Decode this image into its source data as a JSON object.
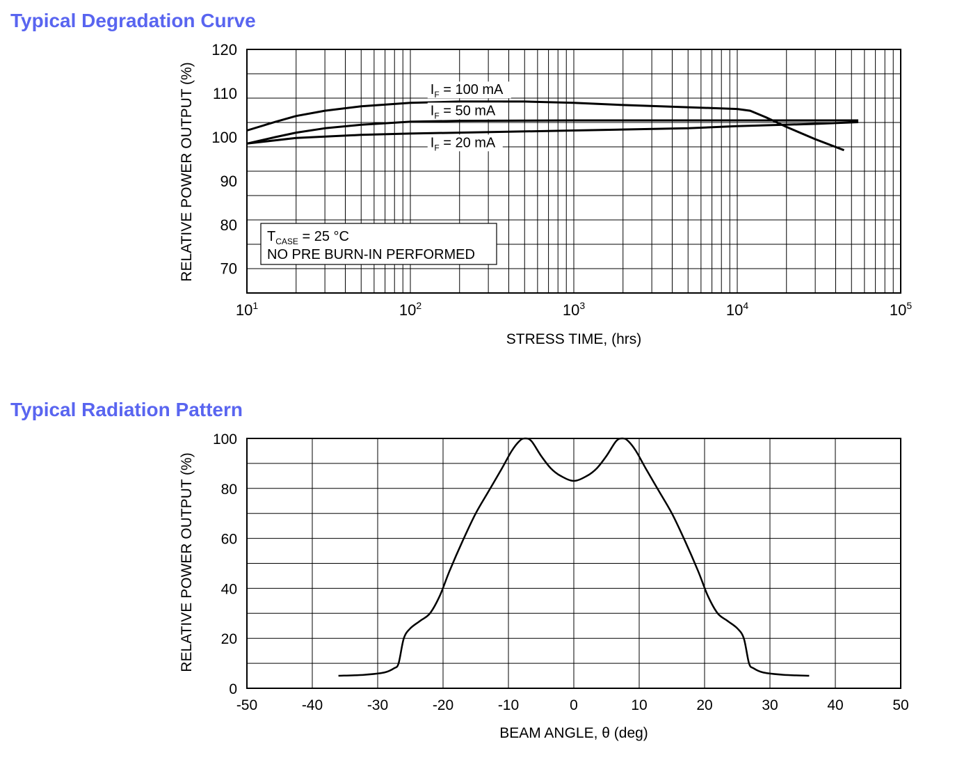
{
  "chart_data": [
    {
      "type": "line",
      "title": "Typical Degradation Curve",
      "xlabel": "STRESS TIME, (hrs)",
      "ylabel": "RELATIVE POWER OUTPUT (%)",
      "xscale": "log",
      "xlim": [
        10,
        100000
      ],
      "ylim": [
        64.4,
        120
      ],
      "xticks": [
        {
          "base": "10",
          "exp": "1",
          "value": 10
        },
        {
          "base": "10",
          "exp": "2",
          "value": 100
        },
        {
          "base": "10",
          "exp": "3",
          "value": 1000
        },
        {
          "base": "10",
          "exp": "4",
          "value": 10000
        },
        {
          "base": "10",
          "exp": "5",
          "value": 100000
        }
      ],
      "yticks": [
        120,
        110,
        100,
        90,
        80,
        70
      ],
      "grid": true,
      "series": [
        {
          "name": "IF = 100 mA",
          "label": {
            "main": "I",
            "sub": "F",
            "rest": " = 100 mA",
            "at": [
              130,
              109.8
            ]
          },
          "x": [
            10,
            15,
            20,
            30,
            50,
            100,
            200,
            500,
            1000,
            2000,
            5000,
            10000,
            12000,
            15000,
            20000,
            30000,
            45000
          ],
          "y": [
            101.5,
            103.5,
            104.8,
            106,
            107,
            107.8,
            108.1,
            108.1,
            107.8,
            107.3,
            106.8,
            106.4,
            106,
            104.5,
            102.3,
            99.5,
            97
          ]
        },
        {
          "name": "IF = 50 mA",
          "label": {
            "main": "I",
            "sub": "F",
            "rest": " = 50 mA",
            "at": [
              130,
              105
            ]
          },
          "x": [
            10,
            15,
            20,
            30,
            50,
            100,
            200,
            1000,
            10000,
            55000
          ],
          "y": [
            98.5,
            100,
            101,
            102,
            102.8,
            103.5,
            103.7,
            103.8,
            103.8,
            103.8
          ]
        },
        {
          "name": "IF = 20 mA",
          "label": {
            "main": "I",
            "sub": "F",
            "rest": " = 20 mA",
            "at": [
              130,
              97.7
            ]
          },
          "x": [
            10,
            20,
            50,
            100,
            200,
            1000,
            5000,
            10000,
            30000,
            55000
          ],
          "y": [
            98.5,
            99.8,
            100.5,
            100.8,
            101,
            101.5,
            102,
            102.5,
            103,
            103.4
          ]
        }
      ],
      "annotation": {
        "line1_main": "T",
        "line1_sub": "CASE",
        "line1_rest": " = 25 °C",
        "line2": "NO PRE BURN-IN PERFORMED"
      }
    },
    {
      "type": "line",
      "title": "Typical Radiation Pattern",
      "xlabel": "BEAM ANGLE, θ (deg)",
      "ylabel": "RELATIVE POWER OUTPUT (%)",
      "xlim": [
        -50,
        50
      ],
      "ylim": [
        0,
        100
      ],
      "xticks": [
        -50,
        -40,
        -30,
        -20,
        -10,
        0,
        10,
        20,
        30,
        40,
        50
      ],
      "yticks": [
        100,
        80,
        60,
        40,
        20,
        0
      ],
      "grid": true,
      "series": [
        {
          "name": "radiation pattern",
          "x": [
            -36,
            -32,
            -29,
            -27.5,
            -26.8,
            -26,
            -25,
            -23.5,
            -22,
            -20.5,
            -19,
            -17,
            -15,
            -13,
            -11,
            -9.5,
            -8.3,
            -7.5,
            -6.5,
            -5,
            -3.5,
            -2,
            0,
            2,
            3.5,
            5,
            6.5,
            7.5,
            8.3,
            9.5,
            11,
            13,
            15,
            17,
            19,
            20.5,
            22,
            23.5,
            25,
            26,
            26.8,
            27.5,
            29,
            32,
            36
          ],
          "y": [
            5,
            5.4,
            6.3,
            8,
            10,
            20,
            24,
            27,
            30,
            37,
            47,
            59,
            70,
            79,
            88,
            95,
            99,
            100,
            99,
            93,
            88,
            85,
            83,
            85,
            88,
            93,
            99,
            100,
            99,
            95,
            88,
            79,
            70,
            59,
            47,
            37,
            30,
            27,
            24,
            20,
            10,
            8,
            6.3,
            5.4,
            5
          ]
        }
      ]
    }
  ]
}
